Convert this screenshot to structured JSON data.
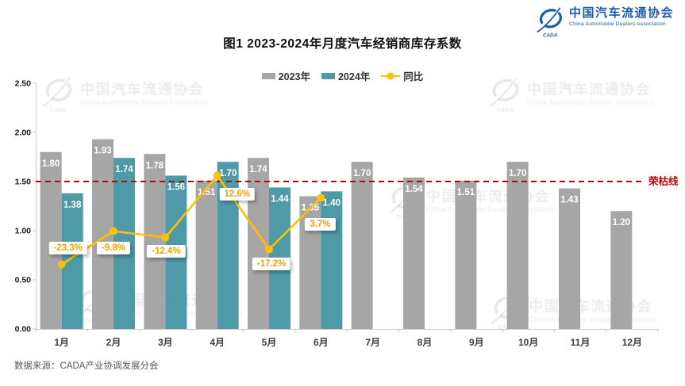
{
  "header": {
    "title": "图1  2023-2024年月度汽车经销商库存系数"
  },
  "logo": {
    "cn": "中国汽车流通协会",
    "en": "China Automobile Dealers Association",
    "badge": "CADA"
  },
  "chart_data": {
    "type": "bar",
    "title": "图1  2023-2024年月度汽车经销商库存系数",
    "categories": [
      "1月",
      "2月",
      "3月",
      "4月",
      "5月",
      "6月",
      "7月",
      "8月",
      "9月",
      "10月",
      "11月",
      "12月"
    ],
    "series": [
      {
        "name": "2023年",
        "type": "bar",
        "color": "#A6A6A6",
        "values": [
          1.8,
          1.93,
          1.78,
          1.51,
          1.74,
          1.35,
          1.7,
          1.54,
          1.51,
          1.7,
          1.43,
          1.2
        ]
      },
      {
        "name": "2024年",
        "type": "bar",
        "color": "#4E9AA8",
        "values": [
          1.38,
          1.74,
          1.56,
          1.7,
          1.44,
          1.4
        ]
      },
      {
        "name": "同比",
        "type": "line",
        "color": "#FFC000",
        "unit": "%",
        "values": [
          -23.3,
          -9.8,
          -12.4,
          12.6,
          -17.2,
          3.7
        ],
        "labels": [
          "-23.3%",
          "-9.8%",
          "-12.4%",
          "12.6%",
          "-17.2%",
          "3.7%"
        ]
      }
    ],
    "ylim": [
      0,
      2.5
    ],
    "yticks": [
      "2.50",
      "2.00",
      "1.50",
      "1.00",
      "0.50",
      "0.00"
    ],
    "grid": false,
    "legend_position": "top",
    "reference_line": {
      "value": 1.5,
      "label": "荣枯线",
      "color": "#C00000"
    }
  },
  "footer": {
    "source": "数据来源：CADA产业协调发展分会"
  },
  "watermark": {
    "cn": "中国汽车流通协会",
    "en": "China Automobile Dealers Association"
  }
}
